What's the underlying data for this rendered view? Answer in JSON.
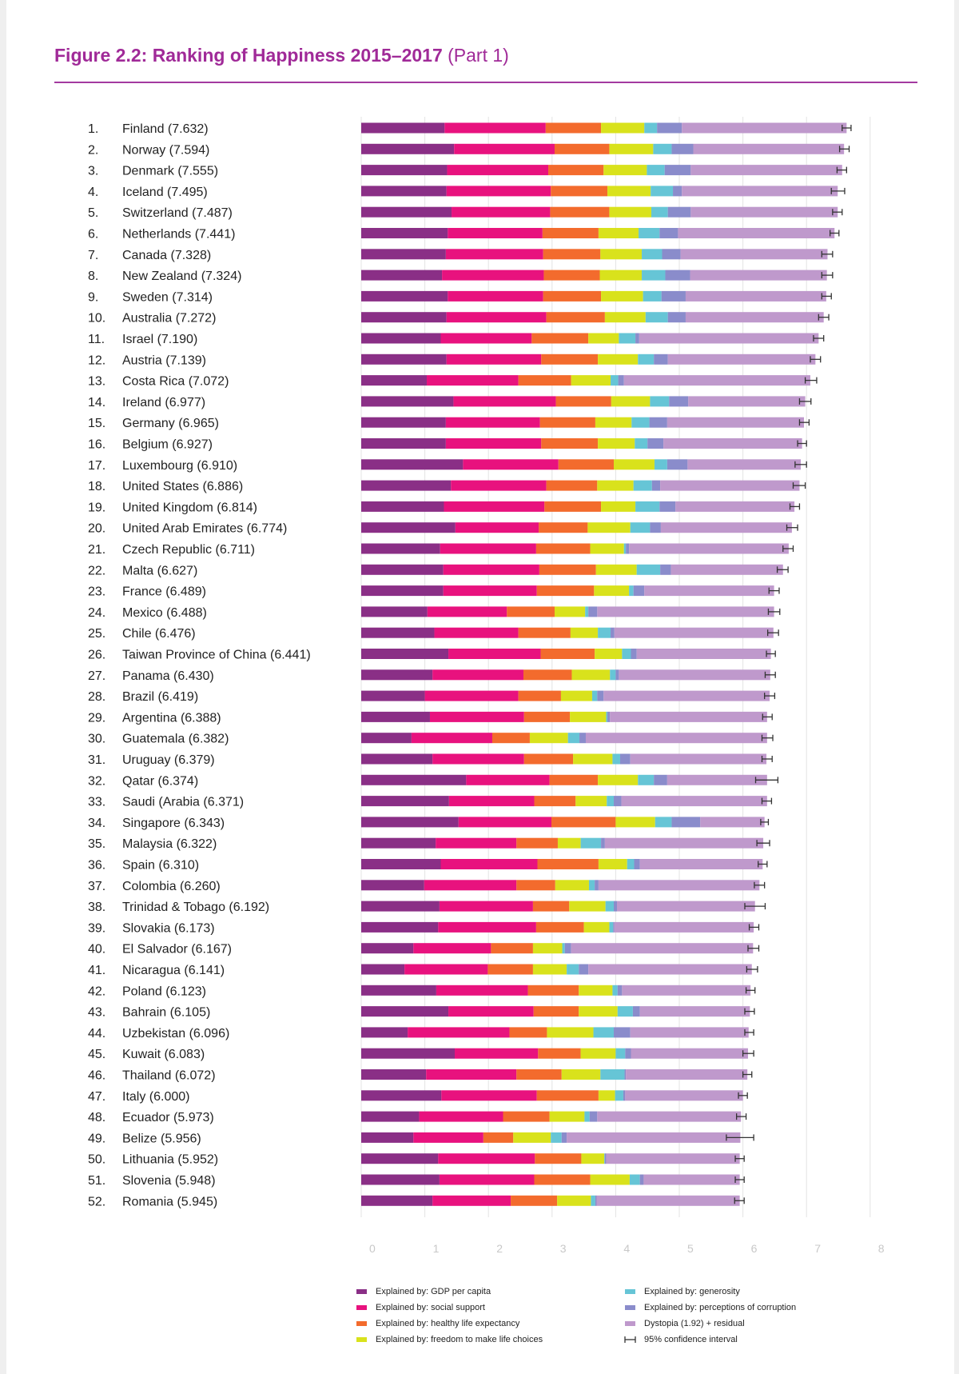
{
  "title": {
    "main": "Figure 2.2: Ranking of Happiness 2015–2017",
    "sub": "(Part 1)"
  },
  "chart_data": {
    "type": "bar",
    "orientation": "horizontal",
    "stacked": true,
    "title": "Figure 2.2: Ranking of Happiness 2015–2017 (Part 1)",
    "xlim": [
      0,
      8
    ],
    "xticks": [
      0,
      1,
      2,
      3,
      4,
      5,
      6,
      7,
      8
    ],
    "grid": true,
    "legend_position": "bottom",
    "components": [
      {
        "name": "Explained by: GDP per capita",
        "color": "#8a2f86"
      },
      {
        "name": "Explained by: social support",
        "color": "#e8127e"
      },
      {
        "name": "Explained by: healthy life expectancy",
        "color": "#f36b2d"
      },
      {
        "name": "Explained by: freedom to make life choices",
        "color": "#d9e21c"
      },
      {
        "name": "Explained by: generosity",
        "color": "#66c5d6"
      },
      {
        "name": "Explained by: perceptions of corruption",
        "color": "#8a8ccb"
      },
      {
        "name": "Dystopia (1.92) + residual",
        "color": "#bf99cc"
      }
    ],
    "ci_legend": "95% confidence interval",
    "rows": [
      {
        "rank": "1.",
        "label": "Finland (7.632)",
        "score": 7.632,
        "parts": [
          1.31,
          1.59,
          0.87,
          0.68,
          0.2,
          0.39,
          2.59
        ],
        "ci": [
          7.56,
          7.7
        ]
      },
      {
        "rank": "2.",
        "label": "Norway (7.594)",
        "score": 7.594,
        "parts": [
          1.46,
          1.58,
          0.86,
          0.69,
          0.29,
          0.34,
          2.37
        ],
        "ci": [
          7.52,
          7.67
        ]
      },
      {
        "rank": "3.",
        "label": "Denmark (7.555)",
        "score": 7.555,
        "parts": [
          1.35,
          1.59,
          0.87,
          0.68,
          0.28,
          0.41,
          2.38
        ],
        "ci": [
          7.48,
          7.63
        ]
      },
      {
        "rank": "4.",
        "label": "Iceland (7.495)",
        "score": 7.495,
        "parts": [
          1.34,
          1.64,
          0.89,
          0.68,
          0.35,
          0.14,
          2.45
        ],
        "ci": [
          7.39,
          7.6
        ]
      },
      {
        "rank": "5.",
        "label": "Switzerland (7.487)",
        "score": 7.487,
        "parts": [
          1.42,
          1.55,
          0.93,
          0.66,
          0.26,
          0.36,
          2.31
        ],
        "ci": [
          7.41,
          7.56
        ]
      },
      {
        "rank": "6.",
        "label": "Netherlands (7.441)",
        "score": 7.441,
        "parts": [
          1.36,
          1.49,
          0.88,
          0.63,
          0.33,
          0.29,
          2.46
        ],
        "ci": [
          7.37,
          7.51
        ]
      },
      {
        "rank": "7.",
        "label": "Canada (7.328)",
        "score": 7.328,
        "parts": [
          1.33,
          1.53,
          0.9,
          0.65,
          0.32,
          0.29,
          2.31
        ],
        "ci": [
          7.24,
          7.41
        ]
      },
      {
        "rank": "8.",
        "label": "New Zealand (7.324)",
        "score": 7.324,
        "parts": [
          1.27,
          1.6,
          0.88,
          0.66,
          0.37,
          0.39,
          2.15
        ],
        "ci": [
          7.24,
          7.41
        ]
      },
      {
        "rank": "9.",
        "label": "Sweden (7.314)",
        "score": 7.314,
        "parts": [
          1.36,
          1.5,
          0.91,
          0.66,
          0.29,
          0.38,
          2.21
        ],
        "ci": [
          7.24,
          7.39
        ]
      },
      {
        "rank": "10.",
        "label": "Australia (7.272)",
        "score": 7.272,
        "parts": [
          1.34,
          1.57,
          0.92,
          0.64,
          0.35,
          0.28,
          2.17
        ],
        "ci": [
          7.19,
          7.35
        ]
      },
      {
        "rank": "11.",
        "label": "Israel (7.190)",
        "score": 7.19,
        "parts": [
          1.25,
          1.43,
          0.89,
          0.48,
          0.26,
          0.06,
          2.82
        ],
        "ci": [
          7.11,
          7.27
        ]
      },
      {
        "rank": "12.",
        "label": "Austria (7.139)",
        "score": 7.139,
        "parts": [
          1.34,
          1.49,
          0.89,
          0.63,
          0.25,
          0.22,
          2.32
        ],
        "ci": [
          7.06,
          7.22
        ]
      },
      {
        "rank": "13.",
        "label": "Costa Rica (7.072)",
        "score": 7.072,
        "parts": [
          1.03,
          1.44,
          0.83,
          0.62,
          0.12,
          0.09,
          2.93
        ],
        "ci": [
          6.98,
          7.16
        ]
      },
      {
        "rank": "14.",
        "label": "Ireland (6.977)",
        "score": 6.977,
        "parts": [
          1.45,
          1.61,
          0.87,
          0.61,
          0.3,
          0.3,
          1.84
        ],
        "ci": [
          6.89,
          7.07
        ]
      },
      {
        "rank": "15.",
        "label": "Germany (6.965)",
        "score": 6.965,
        "parts": [
          1.33,
          1.48,
          0.87,
          0.57,
          0.28,
          0.28,
          2.15
        ],
        "ci": [
          6.89,
          7.04
        ]
      },
      {
        "rank": "16.",
        "label": "Belgium (6.927)",
        "score": 6.927,
        "parts": [
          1.33,
          1.5,
          0.89,
          0.58,
          0.2,
          0.25,
          2.18
        ],
        "ci": [
          6.86,
          7.0
        ]
      },
      {
        "rank": "17.",
        "label": "Luxembourg (6.910)",
        "score": 6.91,
        "parts": [
          1.6,
          1.5,
          0.87,
          0.64,
          0.2,
          0.32,
          1.78
        ],
        "ci": [
          6.82,
          7.0
        ]
      },
      {
        "rank": "18.",
        "label": "United States (6.886)",
        "score": 6.886,
        "parts": [
          1.41,
          1.5,
          0.8,
          0.57,
          0.29,
          0.13,
          2.19
        ],
        "ci": [
          6.79,
          6.98
        ]
      },
      {
        "rank": "19.",
        "label": "United Kingdom (6.814)",
        "score": 6.814,
        "parts": [
          1.3,
          1.58,
          0.89,
          0.54,
          0.38,
          0.25,
          1.87
        ],
        "ci": [
          6.74,
          6.89
        ]
      },
      {
        "rank": "20.",
        "label": "United Arab Emirates (6.774)",
        "score": 6.774,
        "parts": [
          1.48,
          1.31,
          0.77,
          0.67,
          0.31,
          0.17,
          2.06
        ],
        "ci": [
          6.69,
          6.86
        ]
      },
      {
        "rank": "21.",
        "label": "Czech Republic (6.711)",
        "score": 6.711,
        "parts": [
          1.24,
          1.51,
          0.85,
          0.53,
          0.03,
          0.05,
          2.51
        ],
        "ci": [
          6.63,
          6.79
        ]
      },
      {
        "rank": "22.",
        "label": "Malta (6.627)",
        "score": 6.627,
        "parts": [
          1.29,
          1.51,
          0.89,
          0.64,
          0.37,
          0.17,
          1.76
        ],
        "ci": [
          6.54,
          6.71
        ]
      },
      {
        "rank": "23.",
        "label": "France (6.489)",
        "score": 6.489,
        "parts": [
          1.29,
          1.47,
          0.9,
          0.55,
          0.07,
          0.17,
          2.04
        ],
        "ci": [
          6.41,
          6.57
        ]
      },
      {
        "rank": "24.",
        "label": "Mexico (6.488)",
        "score": 6.488,
        "parts": [
          1.04,
          1.25,
          0.75,
          0.48,
          0.05,
          0.14,
          2.78
        ],
        "ci": [
          6.4,
          6.58
        ]
      },
      {
        "rank": "25.",
        "label": "Chile (6.476)",
        "score": 6.476,
        "parts": [
          1.15,
          1.32,
          0.82,
          0.43,
          0.2,
          0.06,
          2.5
        ],
        "ci": [
          6.39,
          6.56
        ]
      },
      {
        "rank": "26.",
        "label": "Taiwan Province of China (6.441)",
        "score": 6.441,
        "parts": [
          1.37,
          1.45,
          0.85,
          0.43,
          0.14,
          0.09,
          2.11
        ],
        "ci": [
          6.37,
          6.51
        ]
      },
      {
        "rank": "27.",
        "label": "Panama (6.430)",
        "score": 6.43,
        "parts": [
          1.12,
          1.43,
          0.76,
          0.6,
          0.09,
          0.05,
          2.38
        ],
        "ci": [
          6.35,
          6.51
        ]
      },
      {
        "rank": "28.",
        "label": "Brazil (6.419)",
        "score": 6.419,
        "parts": [
          1.0,
          1.47,
          0.67,
          0.49,
          0.08,
          0.1,
          2.61
        ],
        "ci": [
          6.34,
          6.5
        ]
      },
      {
        "rank": "29.",
        "label": "Argentina (6.388)",
        "score": 6.388,
        "parts": [
          1.08,
          1.48,
          0.72,
          0.57,
          0.02,
          0.04,
          2.47
        ],
        "ci": [
          6.31,
          6.46
        ]
      },
      {
        "rank": "30.",
        "label": "Guatemala (6.382)",
        "score": 6.382,
        "parts": [
          0.79,
          1.27,
          0.59,
          0.6,
          0.18,
          0.1,
          2.85
        ],
        "ci": [
          6.3,
          6.47
        ]
      },
      {
        "rank": "31.",
        "label": "Uruguay (6.379)",
        "score": 6.379,
        "parts": [
          1.12,
          1.44,
          0.77,
          0.62,
          0.12,
          0.16,
          2.14
        ],
        "ci": [
          6.3,
          6.46
        ]
      },
      {
        "rank": "32.",
        "label": "Qatar (6.374)",
        "score": 6.374,
        "parts": [
          1.65,
          1.31,
          0.76,
          0.63,
          0.25,
          0.21,
          1.57
        ],
        "ci": [
          6.2,
          6.55
        ]
      },
      {
        "rank": "33.",
        "label": "Saudi (Arabia (6.371)",
        "score": 6.371,
        "parts": [
          1.38,
          1.34,
          0.65,
          0.49,
          0.11,
          0.12,
          2.29
        ],
        "ci": [
          6.3,
          6.45
        ]
      },
      {
        "rank": "34.",
        "label": "Singapore (6.343)",
        "score": 6.343,
        "parts": [
          1.53,
          1.46,
          1.01,
          0.62,
          0.26,
          0.45,
          1.01
        ],
        "ci": [
          6.28,
          6.4
        ]
      },
      {
        "rank": "35.",
        "label": "Malaysia (6.322)",
        "score": 6.322,
        "parts": [
          1.17,
          1.27,
          0.65,
          0.36,
          0.32,
          0.06,
          2.49
        ],
        "ci": [
          6.22,
          6.42
        ]
      },
      {
        "rank": "36.",
        "label": "Spain (6.310)",
        "score": 6.31,
        "parts": [
          1.25,
          1.52,
          0.96,
          0.45,
          0.11,
          0.09,
          1.93
        ],
        "ci": [
          6.24,
          6.38
        ]
      },
      {
        "rank": "37.",
        "label": "Colombia (6.260)",
        "score": 6.26,
        "parts": [
          0.99,
          1.45,
          0.61,
          0.53,
          0.09,
          0.06,
          2.53
        ],
        "ci": [
          6.18,
          6.34
        ]
      },
      {
        "rank": "38.",
        "label": "Trinidad & Tobago (6.192)",
        "score": 6.192,
        "parts": [
          1.23,
          1.47,
          0.57,
          0.57,
          0.13,
          0.05,
          2.17
        ],
        "ci": [
          6.03,
          6.35
        ]
      },
      {
        "rank": "39.",
        "label": "Slovakia (6.173)",
        "score": 6.173,
        "parts": [
          1.21,
          1.54,
          0.75,
          0.4,
          0.06,
          0.02,
          2.19
        ],
        "ci": [
          6.1,
          6.25
        ]
      },
      {
        "rank": "40.",
        "label": "El Salvador (6.167)",
        "score": 6.167,
        "parts": [
          0.82,
          1.22,
          0.66,
          0.46,
          0.04,
          0.1,
          2.86
        ],
        "ci": [
          6.08,
          6.25
        ]
      },
      {
        "rank": "41.",
        "label": "Nicaragua (6.141)",
        "score": 6.141,
        "parts": [
          0.68,
          1.31,
          0.71,
          0.53,
          0.19,
          0.15,
          2.57
        ],
        "ci": [
          6.06,
          6.23
        ]
      },
      {
        "rank": "42.",
        "label": "Poland (6.123)",
        "score": 6.123,
        "parts": [
          1.18,
          1.44,
          0.8,
          0.53,
          0.08,
          0.07,
          2.02
        ],
        "ci": [
          6.05,
          6.19
        ]
      },
      {
        "rank": "43.",
        "label": "Bahrain (6.105)",
        "score": 6.105,
        "parts": [
          1.37,
          1.34,
          0.71,
          0.61,
          0.24,
          0.11,
          1.73
        ],
        "ci": [
          6.03,
          6.18
        ]
      },
      {
        "rank": "44.",
        "label": "Uzbekistan (6.096)",
        "score": 6.096,
        "parts": [
          0.73,
          1.6,
          0.59,
          0.73,
          0.32,
          0.26,
          1.86
        ],
        "ci": [
          6.03,
          6.17
        ]
      },
      {
        "rank": "45.",
        "label": "Kuwait (6.083)",
        "score": 6.083,
        "parts": [
          1.47,
          1.31,
          0.67,
          0.55,
          0.15,
          0.09,
          1.84
        ],
        "ci": [
          6.0,
          6.17
        ]
      },
      {
        "rank": "46.",
        "label": "Thailand (6.072)",
        "score": 6.072,
        "parts": [
          1.02,
          1.42,
          0.71,
          0.61,
          0.38,
          0.02,
          1.91
        ],
        "ci": [
          6.0,
          6.14
        ]
      },
      {
        "rank": "47.",
        "label": "Italy (6.000)",
        "score": 6.0,
        "parts": [
          1.26,
          1.5,
          0.97,
          0.26,
          0.13,
          0.03,
          1.85
        ],
        "ci": [
          5.93,
          6.07
        ]
      },
      {
        "rank": "48.",
        "label": "Ecuador (5.973)",
        "score": 5.973,
        "parts": [
          0.91,
          1.32,
          0.73,
          0.55,
          0.08,
          0.12,
          2.26
        ],
        "ci": [
          5.9,
          6.05
        ]
      },
      {
        "rank": "49.",
        "label": "Belize (5.956)",
        "score": 5.956,
        "parts": [
          0.82,
          1.1,
          0.47,
          0.59,
          0.17,
          0.08,
          2.73
        ],
        "ci": [
          5.74,
          6.17
        ]
      },
      {
        "rank": "50.",
        "label": "Lithuania (5.952)",
        "score": 5.952,
        "parts": [
          1.21,
          1.52,
          0.73,
          0.36,
          0.01,
          0.02,
          2.1
        ],
        "ci": [
          5.88,
          6.02
        ]
      },
      {
        "rank": "51.",
        "label": "Slovenia (5.948)",
        "score": 5.948,
        "parts": [
          1.23,
          1.49,
          0.88,
          0.62,
          0.16,
          0.06,
          1.51
        ],
        "ci": [
          5.88,
          6.02
        ]
      },
      {
        "rank": "52.",
        "label": "Romania (5.945)",
        "score": 5.945,
        "parts": [
          1.12,
          1.23,
          0.73,
          0.53,
          0.07,
          0.02,
          2.25
        ],
        "ci": [
          5.87,
          6.02
        ]
      }
    ]
  }
}
